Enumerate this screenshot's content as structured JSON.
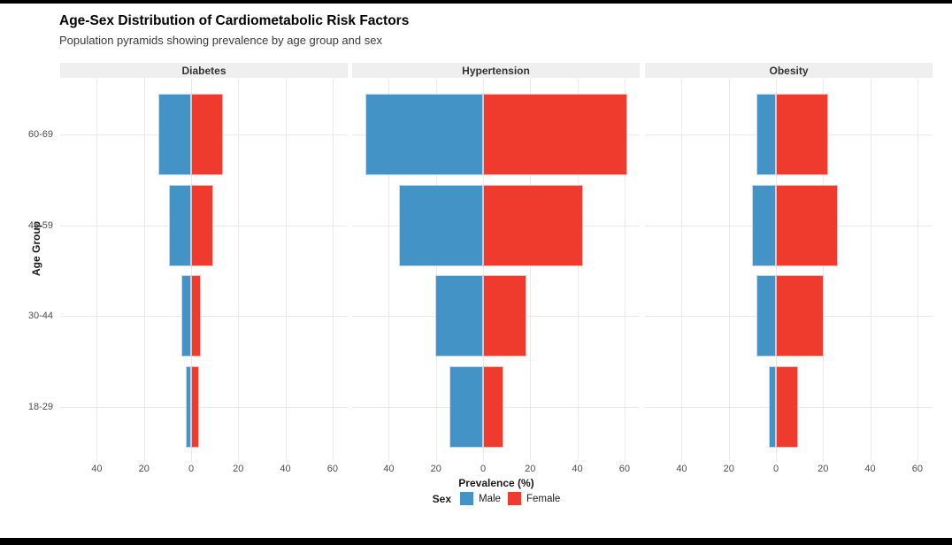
{
  "header": {
    "title": "Age-Sex Distribution of Cardiometabolic Risk Factors",
    "subtitle": "Population pyramids showing prevalence by age group and sex"
  },
  "chart_data": {
    "type": "bar",
    "variant": "population-pyramid-faceted",
    "categories": [
      "60-69",
      "45-59",
      "30-44",
      "18-29"
    ],
    "facets": [
      {
        "label": "Diabetes",
        "series": [
          {
            "name": "Male",
            "values": [
              13.9,
              9.4,
              4.1,
              2.4
            ]
          },
          {
            "name": "Female",
            "values": [
              13.6,
              9.3,
              4.0,
              3.2
            ]
          }
        ]
      },
      {
        "label": "Hypertension",
        "series": [
          {
            "name": "Male",
            "values": [
              50.0,
              35.6,
              20.4,
              14.4
            ]
          },
          {
            "name": "Female",
            "values": [
              61.0,
              42.3,
              18.4,
              8.7
            ]
          }
        ]
      },
      {
        "label": "Obesity",
        "series": [
          {
            "name": "Male",
            "values": [
              8.4,
              10.0,
              8.4,
              2.9
            ]
          },
          {
            "name": "Female",
            "values": [
              22.1,
              26.4,
              20.1,
              9.5
            ]
          }
        ]
      }
    ],
    "xlabel": "Prevalence (%)",
    "ylabel": "Age Group",
    "x_ticks": [
      -40,
      -20,
      0,
      20,
      40,
      60
    ],
    "x_tick_labels": [
      "40",
      "20",
      "0",
      "20",
      "40",
      "60"
    ],
    "xlim": [
      -55.5,
      66.5
    ],
    "grid": true,
    "legend": {
      "title": "Sex",
      "position": "bottom",
      "entries": [
        {
          "label": "Male",
          "color": "#4393c7"
        },
        {
          "label": "Female",
          "color": "#ee3b2e"
        }
      ]
    },
    "colors": {
      "male": "#4393c7",
      "female": "#ee3b2e",
      "strip_background": "#efefef",
      "gridline": "#e9e9e9",
      "tick_text": "#4d4d4d",
      "letterbox": "#000000"
    }
  }
}
